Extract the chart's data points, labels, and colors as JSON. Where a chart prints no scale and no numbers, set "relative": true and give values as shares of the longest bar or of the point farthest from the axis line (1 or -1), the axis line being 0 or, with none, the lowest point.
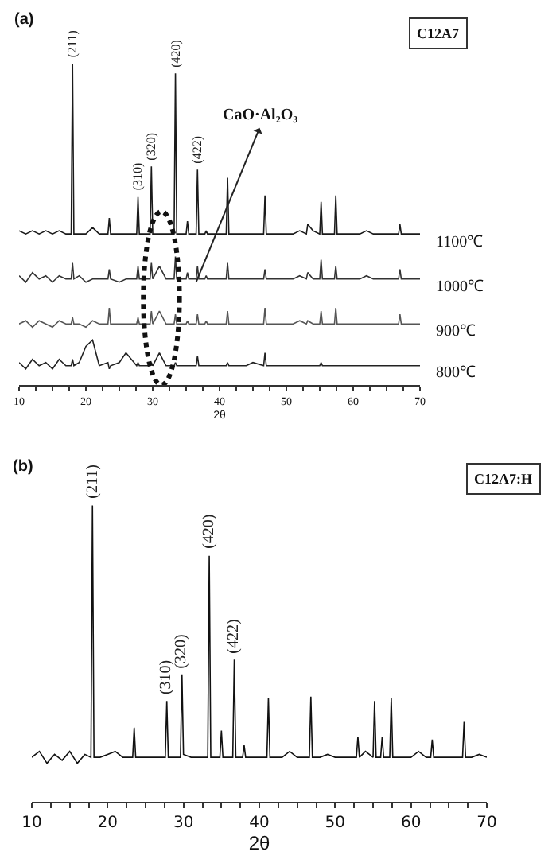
{
  "chart_data": [
    {
      "type": "line",
      "title": "(a)",
      "xlabel": "2θ",
      "relative": true,
      "legend": false,
      "grid": false,
      "marker": "none",
      "line_style": "solid",
      "xlim": [
        10,
        70
      ],
      "xticks": [
        10,
        {
          "value": 12.5,
          "label": null
        },
        {
          "value": 15,
          "label": null
        },
        {
          "value": 17.5,
          "label": null
        },
        20,
        {
          "value": 22.5,
          "label": null
        },
        {
          "value": 25,
          "label": null
        },
        {
          "value": 27.5,
          "label": null
        },
        30,
        {
          "value": 32.5,
          "label": null
        },
        {
          "value": 35,
          "label": null
        },
        {
          "value": 37.5,
          "label": null
        },
        40,
        {
          "value": 42.5,
          "label": null
        },
        {
          "value": 45,
          "label": null
        },
        {
          "value": 47.5,
          "label": null
        },
        50,
        {
          "value": 52.5,
          "label": null
        },
        {
          "value": 55,
          "label": null
        },
        {
          "value": 57.5,
          "label": null
        },
        60,
        {
          "value": 62.5,
          "label": null
        },
        {
          "value": 65,
          "label": null
        },
        {
          "value": 67.5,
          "label": null
        },
        70
      ],
      "x": [
        10,
        11,
        12,
        13,
        14,
        15,
        16,
        17,
        17.8,
        18,
        18.2,
        19,
        20,
        21,
        22,
        23.3,
        23.5,
        23.7,
        25,
        26,
        27.6,
        27.8,
        28,
        29.6,
        29.8,
        30,
        31,
        32,
        33.2,
        33.4,
        33.6,
        34.5,
        35,
        35.2,
        35.4,
        36.5,
        36.7,
        36.9,
        37.8,
        38,
        38.2,
        39,
        40,
        41,
        41.2,
        41.4,
        43,
        44,
        45,
        46.6,
        46.8,
        47,
        48,
        49,
        50,
        51,
        52,
        53,
        53.2,
        54,
        55,
        55.2,
        55.4,
        56,
        57.2,
        57.4,
        57.6,
        59,
        60,
        61,
        62,
        63,
        64,
        65,
        66,
        66.8,
        67,
        67.2,
        68,
        69,
        70
      ],
      "series": [
        {
          "name": "1100℃",
          "color": "#1a1a1a",
          "values": [
            0.48,
            0.47,
            0.48,
            0.47,
            0.48,
            0.47,
            0.48,
            0.47,
            0.47,
            1.0,
            0.47,
            0.47,
            0.47,
            0.49,
            0.47,
            0.47,
            0.52,
            0.47,
            0.47,
            0.47,
            0.47,
            0.585,
            0.47,
            0.47,
            0.68,
            0.47,
            0.47,
            0.47,
            0.47,
            0.97,
            0.47,
            0.47,
            0.47,
            0.51,
            0.47,
            0.47,
            0.67,
            0.47,
            0.47,
            0.48,
            0.47,
            0.47,
            0.47,
            0.47,
            0.645,
            0.47,
            0.47,
            0.47,
            0.47,
            0.47,
            0.59,
            0.47,
            0.47,
            0.47,
            0.47,
            0.47,
            0.48,
            0.47,
            0.5,
            0.48,
            0.47,
            0.57,
            0.47,
            0.47,
            0.47,
            0.59,
            0.47,
            0.47,
            0.47,
            0.47,
            0.48,
            0.47,
            0.47,
            0.47,
            0.47,
            0.47,
            0.5,
            0.47,
            0.47,
            0.47,
            0.47
          ]
        },
        {
          "name": "1000℃",
          "color": "#333333",
          "values": [
            0.34,
            0.32,
            0.35,
            0.33,
            0.34,
            0.32,
            0.34,
            0.33,
            0.33,
            0.38,
            0.33,
            0.34,
            0.32,
            0.33,
            0.33,
            0.33,
            0.36,
            0.33,
            0.32,
            0.33,
            0.33,
            0.37,
            0.33,
            0.33,
            0.38,
            0.33,
            0.37,
            0.33,
            0.33,
            0.4,
            0.33,
            0.33,
            0.33,
            0.35,
            0.33,
            0.33,
            0.37,
            0.33,
            0.33,
            0.34,
            0.33,
            0.33,
            0.33,
            0.33,
            0.38,
            0.33,
            0.33,
            0.33,
            0.33,
            0.33,
            0.36,
            0.33,
            0.33,
            0.33,
            0.33,
            0.33,
            0.34,
            0.33,
            0.35,
            0.33,
            0.33,
            0.39,
            0.33,
            0.33,
            0.33,
            0.37,
            0.33,
            0.33,
            0.33,
            0.33,
            0.34,
            0.33,
            0.33,
            0.33,
            0.33,
            0.33,
            0.36,
            0.33,
            0.33,
            0.33,
            0.33
          ]
        },
        {
          "name": "900℃",
          "color": "#555555",
          "values": [
            0.19,
            0.2,
            0.18,
            0.2,
            0.19,
            0.18,
            0.2,
            0.19,
            0.19,
            0.21,
            0.19,
            0.19,
            0.18,
            0.2,
            0.19,
            0.19,
            0.24,
            0.19,
            0.19,
            0.19,
            0.19,
            0.21,
            0.19,
            0.19,
            0.23,
            0.19,
            0.23,
            0.19,
            0.19,
            0.22,
            0.19,
            0.19,
            0.19,
            0.2,
            0.19,
            0.19,
            0.22,
            0.19,
            0.19,
            0.2,
            0.19,
            0.19,
            0.19,
            0.19,
            0.23,
            0.19,
            0.19,
            0.19,
            0.19,
            0.19,
            0.24,
            0.19,
            0.19,
            0.19,
            0.19,
            0.19,
            0.2,
            0.19,
            0.2,
            0.19,
            0.19,
            0.23,
            0.19,
            0.19,
            0.19,
            0.24,
            0.19,
            0.19,
            0.19,
            0.19,
            0.19,
            0.19,
            0.19,
            0.19,
            0.19,
            0.19,
            0.22,
            0.19,
            0.19,
            0.19,
            0.19
          ]
        },
        {
          "name": "800℃",
          "color": "#222222",
          "values": [
            0.07,
            0.05,
            0.08,
            0.06,
            0.07,
            0.05,
            0.08,
            0.06,
            0.06,
            0.08,
            0.06,
            0.07,
            0.12,
            0.14,
            0.06,
            0.07,
            0.05,
            0.06,
            0.07,
            0.1,
            0.06,
            0.07,
            0.06,
            0.06,
            0.07,
            0.06,
            0.1,
            0.06,
            0.06,
            0.07,
            0.06,
            0.06,
            0.06,
            0.06,
            0.06,
            0.06,
            0.09,
            0.06,
            0.06,
            0.06,
            0.06,
            0.06,
            0.06,
            0.06,
            0.07,
            0.06,
            0.06,
            0.06,
            0.07,
            0.06,
            0.1,
            0.06,
            0.06,
            0.06,
            0.06,
            0.06,
            0.06,
            0.06,
            0.06,
            0.06,
            0.06,
            0.07,
            0.06,
            0.06,
            0.06,
            0.06,
            0.06,
            0.06,
            0.06,
            0.06,
            0.06,
            0.06,
            0.06,
            0.06,
            0.06,
            0.06,
            0.06,
            0.06,
            0.06,
            0.06,
            0.06
          ]
        }
      ],
      "annotations": [
        {
          "text": "(211)",
          "x": 18,
          "y": 1.0
        },
        {
          "text": "(310)",
          "x": 27.8,
          "y": 0.585
        },
        {
          "text": "(320)",
          "x": 29.8,
          "y": 0.68
        },
        {
          "text": "(420)",
          "x": 33.4,
          "y": 0.97
        },
        {
          "text": "(422)",
          "x": 36.7,
          "y": 0.67
        },
        "C12A7",
        "CaO·Al₂O₃"
      ]
    },
    {
      "type": "line",
      "title": "(b)",
      "xlabel": "2θ",
      "relative": true,
      "legend": false,
      "grid": false,
      "marker": "none",
      "line_style": "solid",
      "xlim": [
        10,
        70
      ],
      "xticks": [
        10,
        {
          "value": 12.5,
          "label": null
        },
        {
          "value": 15,
          "label": null
        },
        {
          "value": 17.5,
          "label": null
        },
        20,
        {
          "value": 22.5,
          "label": null
        },
        {
          "value": 25,
          "label": null
        },
        {
          "value": 27.5,
          "label": null
        },
        30,
        {
          "value": 32.5,
          "label": null
        },
        {
          "value": 35,
          "label": null
        },
        {
          "value": 37.5,
          "label": null
        },
        40,
        {
          "value": 42.5,
          "label": null
        },
        {
          "value": 45,
          "label": null
        },
        {
          "value": 47.5,
          "label": null
        },
        50,
        {
          "value": 52.5,
          "label": null
        },
        {
          "value": 55,
          "label": null
        },
        {
          "value": 57.5,
          "label": null
        },
        60,
        {
          "value": 62.5,
          "label": null
        },
        {
          "value": 65,
          "label": null
        },
        {
          "value": 67.5,
          "label": null
        },
        70
      ],
      "x": [
        10,
        11,
        12,
        13,
        14,
        15,
        16,
        17,
        17.8,
        18,
        18.2,
        19,
        20,
        21,
        22,
        23.3,
        23.5,
        23.7,
        25,
        26,
        27.6,
        27.8,
        28,
        29.6,
        29.8,
        30,
        31,
        32,
        33.2,
        33.4,
        33.6,
        34.8,
        35,
        35.2,
        36.5,
        36.7,
        36.9,
        37.8,
        38,
        38.2,
        39,
        40,
        41,
        41.2,
        41.4,
        43,
        44,
        45,
        46.6,
        46.8,
        47,
        48,
        49,
        50,
        51,
        52,
        52.8,
        53,
        53.2,
        54,
        55,
        55.2,
        55.4,
        56,
        56.2,
        56.4,
        57.2,
        57.4,
        57.6,
        59,
        60,
        61,
        62,
        62.6,
        62.8,
        63,
        64,
        65,
        66,
        66.8,
        67,
        67.2,
        68,
        69,
        70
      ],
      "series": [
        {
          "color": "#111111",
          "values": [
            0.15,
            0.17,
            0.13,
            0.16,
            0.14,
            0.17,
            0.13,
            0.16,
            0.15,
            1.0,
            0.15,
            0.15,
            0.16,
            0.17,
            0.15,
            0.15,
            0.25,
            0.15,
            0.15,
            0.15,
            0.15,
            0.34,
            0.15,
            0.15,
            0.43,
            0.16,
            0.15,
            0.15,
            0.15,
            0.83,
            0.15,
            0.15,
            0.24,
            0.15,
            0.15,
            0.48,
            0.15,
            0.15,
            0.19,
            0.15,
            0.15,
            0.15,
            0.15,
            0.35,
            0.15,
            0.15,
            0.17,
            0.15,
            0.15,
            0.355,
            0.15,
            0.15,
            0.16,
            0.15,
            0.15,
            0.15,
            0.15,
            0.22,
            0.15,
            0.17,
            0.15,
            0.34,
            0.15,
            0.15,
            0.22,
            0.15,
            0.15,
            0.35,
            0.15,
            0.15,
            0.15,
            0.17,
            0.15,
            0.15,
            0.21,
            0.15,
            0.15,
            0.15,
            0.15,
            0.15,
            0.27,
            0.15,
            0.15,
            0.16,
            0.15
          ]
        }
      ],
      "annotations": [
        {
          "text": "(211)",
          "x": 18,
          "y": 1.0
        },
        {
          "text": "(310)",
          "x": 27.8,
          "y": 0.34
        },
        {
          "text": "(320)",
          "x": 29.8,
          "y": 0.43
        },
        {
          "text": "(420)",
          "x": 33.4,
          "y": 0.83
        },
        {
          "text": "(422)",
          "x": 36.7,
          "y": 0.48
        },
        "C12A7:H"
      ]
    }
  ]
}
